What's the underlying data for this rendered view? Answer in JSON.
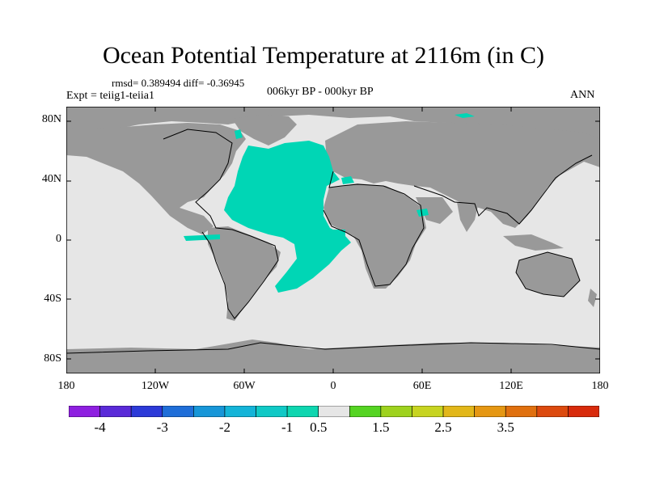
{
  "title": "Ocean Potential Temperature at 2116m (in C)",
  "stats": "rmsd= 0.389494 diff= -0.36945",
  "experiment": "Expt = teiig1-teiia1",
  "period": "006kyr BP - 000kyr BP",
  "season": "ANN",
  "lat_labels": [
    "80N",
    "40N",
    "0",
    "40S",
    "80S"
  ],
  "lon_labels": [
    "180",
    "120W",
    "60W",
    "0",
    "60E",
    "120E",
    "180"
  ],
  "colors": {
    "land": "#999999",
    "ocean_small_change": "#e6e6e6",
    "ocean_change": "#00d6b5",
    "coastline": "#000000"
  },
  "colorbar": {
    "colors": [
      "#8e1fe0",
      "#5a2ad8",
      "#2c3ad8",
      "#1f6ed8",
      "#1796d8",
      "#14b4d8",
      "#10c9c6",
      "#0ed6b0",
      "#e6e6e6",
      "#55d422",
      "#9ed21e",
      "#c7d421",
      "#e2b71a",
      "#e59713",
      "#e0700f",
      "#dc4a0e",
      "#d82b0c"
    ],
    "labels": [
      "-4",
      "-3",
      "-2",
      "-1",
      "0.5",
      "1.5",
      "2.5",
      "3.5"
    ]
  }
}
